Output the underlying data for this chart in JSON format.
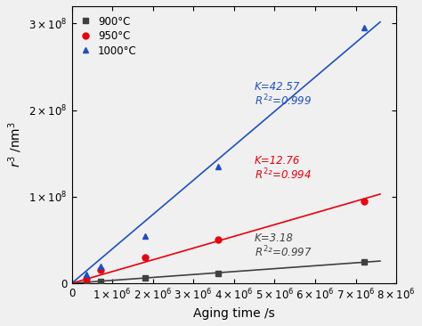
{
  "series": [
    {
      "label": "900°C",
      "color": "#404040",
      "marker": "s",
      "K": 3.18,
      "R2": 0.997,
      "x_data": [
        360000.0,
        720000.0,
        1800000.0,
        3600000.0,
        7200000.0
      ],
      "y_data": [
        1000000.0,
        2000000.0,
        6000000.0,
        11000000.0,
        25000000.0
      ],
      "fit_x": [
        0,
        7600000.0
      ],
      "annotation": "K=3.18\nR²=0.997",
      "ann_x": 4500000.0,
      "ann_y": 45000000.0,
      "ann_color": "#404040"
    },
    {
      "label": "950°C",
      "color": "#e8000d",
      "marker": "o",
      "K": 12.76,
      "R2": 0.994,
      "x_data": [
        360000.0,
        720000.0,
        1800000.0,
        3600000.0,
        7200000.0
      ],
      "y_data": [
        5000000.0,
        15000000.0,
        30000000.0,
        50000000.0,
        95000000.0
      ],
      "fit_x": [
        0,
        7600000.0
      ],
      "annotation": "K=12.76\nR²=0.994",
      "ann_x": 4500000.0,
      "ann_y": 135000000.0,
      "ann_color": "#e8000d"
    },
    {
      "label": "1000°C",
      "color": "#1f4ec5",
      "marker": "^",
      "K": 42.57,
      "R2": 0.999,
      "x_data": [
        360000.0,
        720000.0,
        1800000.0,
        3600000.0,
        7200000.0
      ],
      "y_data": [
        10000000.0,
        20000000.0,
        55000000.0,
        135000000.0,
        295000000.0
      ],
      "fit_x": [
        0,
        7600000.0
      ],
      "annotation": "K=42.57\nR²=0.999",
      "ann_x": 4500000.0,
      "ann_y": 220000000.0,
      "ann_color": "#1f4ec5"
    }
  ],
  "xlabel": "Aging time /s",
  "ylabel": "$r^3$ /nm$^3$",
  "xlim": [
    0,
    8000000.0
  ],
  "ylim": [
    0,
    320000000.0
  ],
  "xticks": [
    0,
    1000000.0,
    2000000.0,
    3000000.0,
    4000000.0,
    5000000.0,
    6000000.0,
    7000000.0,
    8000000.0
  ],
  "yticks": [
    0,
    100000000.0,
    200000000.0,
    300000000.0
  ],
  "background_color": "#f0f0f0",
  "legend_loc": "upper left"
}
